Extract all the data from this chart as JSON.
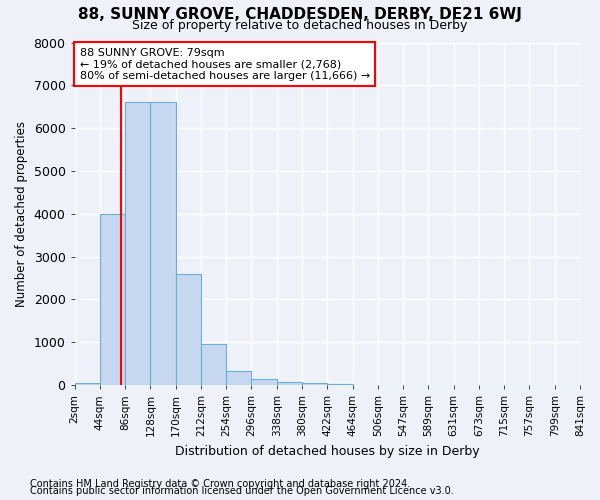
{
  "title": "88, SUNNY GROVE, CHADDESDEN, DERBY, DE21 6WJ",
  "subtitle": "Size of property relative to detached houses in Derby",
  "xlabel": "Distribution of detached houses by size in Derby",
  "ylabel": "Number of detached properties",
  "bar_values": [
    50,
    4000,
    6600,
    6600,
    2600,
    950,
    330,
    130,
    80,
    50,
    20,
    5,
    3,
    2,
    1,
    1,
    1,
    1,
    1,
    1
  ],
  "bin_labels": [
    "2sqm",
    "44sqm",
    "86sqm",
    "128sqm",
    "170sqm",
    "212sqm",
    "254sqm",
    "296sqm",
    "338sqm",
    "380sqm",
    "422sqm",
    "464sqm",
    "506sqm",
    "547sqm",
    "589sqm",
    "631sqm",
    "673sqm",
    "715sqm",
    "757sqm",
    "799sqm",
    "841sqm"
  ],
  "bar_color": "#c5d8f0",
  "bar_edge_color": "#6aaed6",
  "annotation_text": "88 SUNNY GROVE: 79sqm\n← 19% of detached houses are smaller (2,768)\n80% of semi-detached houses are larger (11,666) →",
  "vline_color": "red",
  "annotation_box_color": "white",
  "annotation_box_edge": "red",
  "ylim": [
    0,
    8000
  ],
  "yticks": [
    0,
    1000,
    2000,
    3000,
    4000,
    5000,
    6000,
    7000,
    8000
  ],
  "footer1": "Contains HM Land Registry data © Crown copyright and database right 2024.",
  "footer2": "Contains public sector information licensed under the Open Government Licence v3.0.",
  "background_color": "#eef2f8"
}
